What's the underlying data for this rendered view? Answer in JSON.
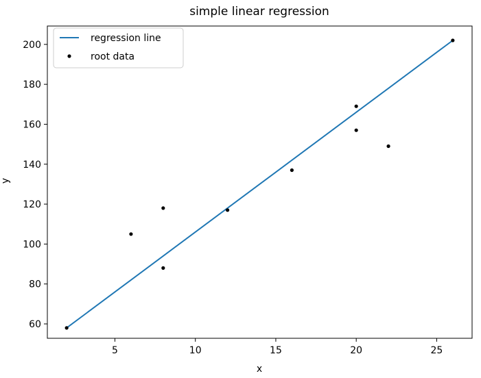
{
  "chart_data": {
    "type": "scatter",
    "title": "simple linear regression",
    "xlabel": "x",
    "ylabel": "y",
    "xlim": [
      0.8,
      27.2
    ],
    "ylim": [
      52.8,
      209.2
    ],
    "xticks": [
      5,
      10,
      15,
      20,
      25
    ],
    "yticks": [
      60,
      80,
      100,
      120,
      140,
      160,
      180,
      200
    ],
    "grid": false,
    "legend_position": "upper-left",
    "series": [
      {
        "name": "regression line",
        "kind": "line",
        "color": "#1f77b4",
        "x": [
          2,
          26
        ],
        "y": [
          58,
          202
        ]
      },
      {
        "name": "root data",
        "kind": "scatter",
        "color": "#000000",
        "x": [
          2,
          6,
          8,
          8,
          12,
          16,
          20,
          20,
          22,
          26
        ],
        "y": [
          58,
          105,
          88,
          118,
          117,
          137,
          157,
          169,
          149,
          202
        ]
      }
    ]
  }
}
